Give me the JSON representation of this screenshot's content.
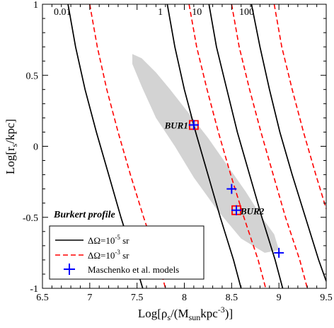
{
  "chart_data": {
    "type": "line",
    "title": "",
    "xlabel": {
      "base": "Log[ρ",
      "sub1": "s",
      "mid": "/(M",
      "sub2": "sun",
      "mid2": "kpc",
      "sup": "-3",
      "end": ")]"
    },
    "ylabel": {
      "base": "Log[r",
      "sub": "s",
      "end": "/kpc]"
    },
    "xlim": [
      6.5,
      9.5
    ],
    "ylim": [
      -1,
      1
    ],
    "x_ticks": [
      "6.5",
      "7",
      "7.5",
      "8",
      "8.5",
      "9",
      "9.5"
    ],
    "y_ticks": [
      "-1",
      "-0.5",
      "0",
      "0.5",
      "1"
    ],
    "x_tick_values": [
      6.5,
      7,
      7.5,
      8,
      8.5,
      9,
      9.5
    ],
    "y_tick_values": [
      -1,
      -0.5,
      0,
      0.5,
      1
    ],
    "curve_labels": [
      {
        "text": "0.01",
        "x": 6.62,
        "y": 0.925
      },
      {
        "text": "1",
        "x": 7.72,
        "y": 0.925
      },
      {
        "text": "10",
        "x": 8.08,
        "y": 0.925
      },
      {
        "text": "100",
        "x": 8.58,
        "y": 0.925
      }
    ],
    "solid_curves": [
      {
        "label": "0.01",
        "points": [
          [
            6.77,
            1.0
          ],
          [
            6.85,
            0.7
          ],
          [
            6.95,
            0.4
          ],
          [
            7.07,
            0.1
          ],
          [
            7.2,
            -0.2
          ],
          [
            7.33,
            -0.5
          ],
          [
            7.47,
            -0.8
          ],
          [
            7.56,
            -1.0
          ]
        ]
      },
      {
        "label": "1",
        "points": [
          [
            7.82,
            1.0
          ],
          [
            7.9,
            0.7
          ],
          [
            8.0,
            0.4
          ],
          [
            8.12,
            0.1
          ],
          [
            8.25,
            -0.2
          ],
          [
            8.38,
            -0.5
          ],
          [
            8.52,
            -0.8
          ],
          [
            8.6,
            -1.0
          ]
        ]
      },
      {
        "label": "10",
        "points": [
          [
            8.26,
            1.0
          ],
          [
            8.34,
            0.7
          ],
          [
            8.45,
            0.4
          ],
          [
            8.56,
            0.1
          ],
          [
            8.69,
            -0.2
          ],
          [
            8.82,
            -0.5
          ],
          [
            8.96,
            -0.8
          ],
          [
            9.04,
            -1.0
          ]
        ]
      },
      {
        "label": "100",
        "points": [
          [
            8.71,
            1.0
          ],
          [
            8.8,
            0.7
          ],
          [
            8.9,
            0.4
          ],
          [
            9.01,
            0.1
          ],
          [
            9.14,
            -0.2
          ],
          [
            9.28,
            -0.5
          ],
          [
            9.42,
            -0.8
          ],
          [
            9.5,
            -0.95
          ]
        ]
      }
    ],
    "dashed_curves": [
      {
        "label": "0.01",
        "points": [
          [
            7.0,
            1.0
          ],
          [
            7.08,
            0.7
          ],
          [
            7.18,
            0.4
          ],
          [
            7.3,
            0.1
          ],
          [
            7.43,
            -0.2
          ],
          [
            7.57,
            -0.5
          ],
          [
            7.72,
            -0.8
          ],
          [
            7.8,
            -1.0
          ]
        ]
      },
      {
        "label": "1",
        "points": [
          [
            8.05,
            1.0
          ],
          [
            8.13,
            0.7
          ],
          [
            8.24,
            0.4
          ],
          [
            8.36,
            0.1
          ],
          [
            8.49,
            -0.2
          ],
          [
            8.63,
            -0.5
          ],
          [
            8.78,
            -0.8
          ],
          [
            8.86,
            -1.0
          ]
        ]
      },
      {
        "label": "10",
        "points": [
          [
            8.5,
            1.0
          ],
          [
            8.58,
            0.7
          ],
          [
            8.69,
            0.4
          ],
          [
            8.81,
            0.1
          ],
          [
            8.94,
            -0.2
          ],
          [
            9.07,
            -0.5
          ],
          [
            9.22,
            -0.8
          ],
          [
            9.3,
            -1.0
          ]
        ]
      },
      {
        "label": "100",
        "points": [
          [
            8.95,
            1.0
          ],
          [
            9.03,
            0.7
          ],
          [
            9.14,
            0.4
          ],
          [
            9.26,
            0.1
          ],
          [
            9.39,
            -0.2
          ],
          [
            9.5,
            -0.44
          ]
        ]
      }
    ],
    "shaded_region": [
      [
        7.45,
        0.65
      ],
      [
        7.55,
        0.62
      ],
      [
        7.7,
        0.52
      ],
      [
        7.85,
        0.4
      ],
      [
        8.05,
        0.23
      ],
      [
        8.25,
        0.06
      ],
      [
        8.45,
        -0.13
      ],
      [
        8.65,
        -0.32
      ],
      [
        8.82,
        -0.5
      ],
      [
        8.95,
        -0.62
      ],
      [
        9.0,
        -0.73
      ],
      [
        8.85,
        -0.75
      ],
      [
        8.6,
        -0.65
      ],
      [
        8.35,
        -0.45
      ],
      [
        8.1,
        -0.22
      ],
      [
        7.9,
        0.0
      ],
      [
        7.7,
        0.2
      ],
      [
        7.55,
        0.42
      ],
      [
        7.45,
        0.58
      ]
    ],
    "maschenko_points": [
      [
        8.1,
        0.15
      ],
      [
        8.5,
        -0.3
      ],
      [
        8.55,
        -0.45
      ],
      [
        9.0,
        -0.75
      ]
    ],
    "boxes": [
      {
        "label": "BUR1",
        "x": 8.1,
        "y": 0.15
      },
      {
        "label": "BUR2",
        "x": 8.55,
        "y": -0.45
      }
    ],
    "profile_label": "Burkert profile",
    "legend": {
      "position": "bottom-left",
      "entries": [
        {
          "kind": "solid",
          "pre": "ΔΩ=10",
          "sup": "-5",
          "post": " sr"
        },
        {
          "kind": "dashed",
          "pre": "ΔΩ=10",
          "sup": "-3",
          "post": " sr"
        },
        {
          "kind": "marker",
          "pre": "Maschenko et al. models",
          "sup": "",
          "post": ""
        }
      ]
    },
    "colors": {
      "solid": "#000000",
      "dashed": "#ff0000",
      "marker": "#0000ff",
      "box": "#ff0000",
      "shade": "#d3d3d3"
    }
  }
}
